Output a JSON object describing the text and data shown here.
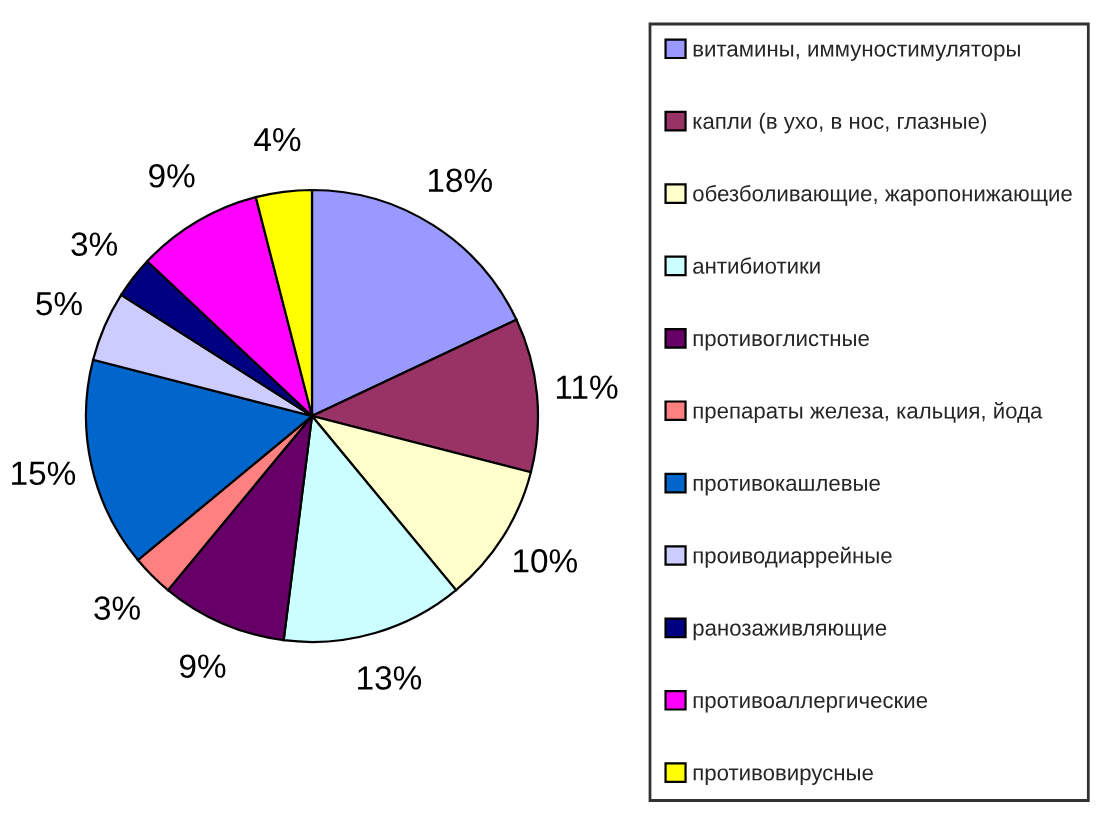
{
  "chart_data": {
    "type": "pie",
    "categories": [
      "витамины, иммуностимуляторы",
      "капли (в ухо, в нос, глазные)",
      "обезболивающие, жаропонижающие",
      "антибиотики",
      "противоглистные",
      "препараты железа, кальция, йода",
      "противокашлевые",
      "проиводиаррейные",
      "ранозаживляющие",
      "противоаллергические",
      "противовирусные"
    ],
    "values": [
      18,
      11,
      10,
      13,
      9,
      3,
      15,
      5,
      3,
      9,
      4
    ],
    "colors": [
      "#9999ff",
      "#993366",
      "#ffffcc",
      "#ccffff",
      "#660066",
      "#ff8080",
      "#0066cc",
      "#ccccff",
      "#000080",
      "#ff00ff",
      "#ffff00"
    ],
    "value_labels": [
      "18%",
      "11%",
      "10%",
      "13%",
      "9%",
      "3%",
      "15%",
      "5%",
      "3%",
      "9%",
      "4%"
    ],
    "legend": "right"
  }
}
